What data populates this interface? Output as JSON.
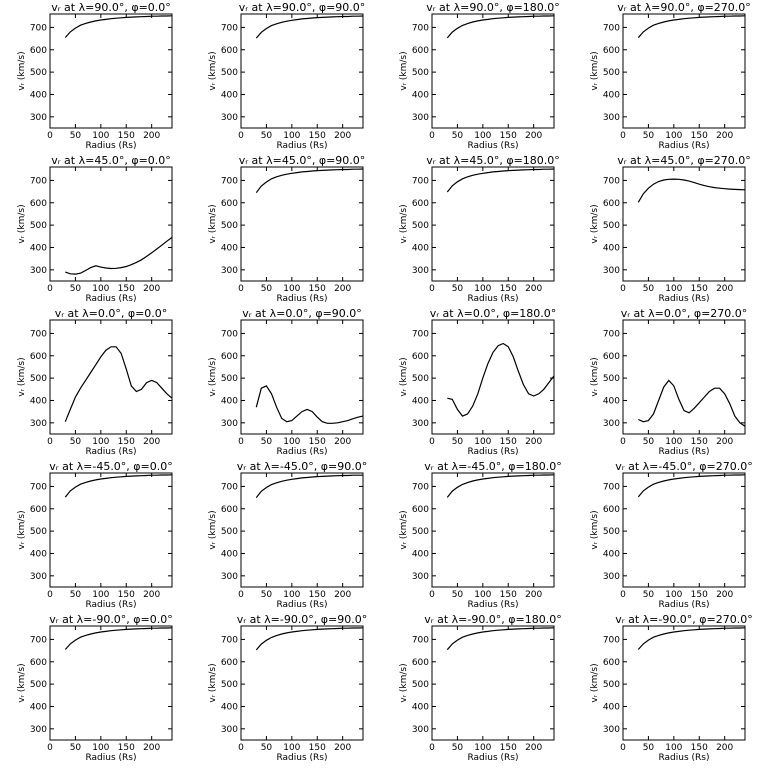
{
  "axes_common": {
    "xlabel": "Radius (Rs)",
    "ylabel": "v$_r$ (km/s)",
    "ylabel_display": "vᵣ (km/s)",
    "xlim": [
      0,
      240
    ],
    "ylim": [
      250,
      760
    ],
    "xticks": [
      0,
      50,
      100,
      150,
      200
    ],
    "yticks": [
      300,
      400,
      500,
      600,
      700
    ]
  },
  "chart_data": [
    {
      "type": "line",
      "title": "vᵣ at λ=90.0°, φ=0.0°",
      "x": [
        30,
        40,
        50,
        60,
        70,
        80,
        90,
        100,
        110,
        120,
        130,
        140,
        150,
        160,
        170,
        180,
        190,
        200,
        210,
        220,
        230,
        240
      ],
      "y": [
        655,
        680,
        697,
        710,
        718,
        724,
        729,
        733,
        736,
        739,
        741,
        743,
        745,
        746,
        747,
        748,
        749,
        750,
        750,
        751,
        751,
        752
      ]
    },
    {
      "type": "line",
      "title": "vᵣ at λ=90.0°, φ=90.0°",
      "x": [
        30,
        40,
        50,
        60,
        70,
        80,
        90,
        100,
        110,
        120,
        130,
        140,
        150,
        160,
        170,
        180,
        190,
        200,
        210,
        220,
        230,
        240
      ],
      "y": [
        652,
        678,
        695,
        708,
        716,
        723,
        728,
        732,
        735,
        738,
        740,
        742,
        744,
        745,
        746,
        747,
        748,
        749,
        749,
        750,
        750,
        751
      ]
    },
    {
      "type": "line",
      "title": "vᵣ at λ=90.0°, φ=180.0°",
      "x": [
        30,
        40,
        50,
        60,
        70,
        80,
        90,
        100,
        110,
        120,
        130,
        140,
        150,
        160,
        170,
        180,
        190,
        200,
        210,
        220,
        230,
        240
      ],
      "y": [
        653,
        679,
        696,
        709,
        717,
        724,
        729,
        733,
        736,
        739,
        741,
        743,
        745,
        746,
        747,
        748,
        749,
        750,
        750,
        751,
        751,
        752
      ]
    },
    {
      "type": "line",
      "title": "vᵣ at λ=90.0°, φ=270.0°",
      "x": [
        30,
        40,
        50,
        60,
        70,
        80,
        90,
        100,
        110,
        120,
        130,
        140,
        150,
        160,
        170,
        180,
        190,
        200,
        210,
        220,
        230,
        240
      ],
      "y": [
        654,
        680,
        697,
        710,
        718,
        724,
        729,
        733,
        736,
        739,
        741,
        743,
        745,
        746,
        747,
        748,
        749,
        750,
        750,
        751,
        751,
        752
      ]
    },
    {
      "type": "line",
      "title": "vᵣ at λ=45.0°, φ=0.0°",
      "x": [
        30,
        40,
        50,
        60,
        70,
        80,
        90,
        100,
        110,
        120,
        130,
        140,
        150,
        160,
        170,
        180,
        190,
        200,
        210,
        220,
        230,
        240
      ],
      "y": [
        290,
        282,
        281,
        285,
        297,
        310,
        318,
        312,
        308,
        306,
        307,
        310,
        315,
        323,
        333,
        345,
        360,
        376,
        393,
        410,
        428,
        445
      ]
    },
    {
      "type": "line",
      "title": "vᵣ at λ=45.0°, φ=90.0°",
      "x": [
        30,
        40,
        50,
        60,
        70,
        80,
        90,
        100,
        110,
        120,
        130,
        140,
        150,
        160,
        170,
        180,
        190,
        200,
        210,
        220,
        230,
        240
      ],
      "y": [
        645,
        675,
        693,
        707,
        716,
        723,
        728,
        732,
        735,
        738,
        740,
        742,
        744,
        745,
        746,
        747,
        748,
        749,
        749,
        750,
        750,
        751
      ]
    },
    {
      "type": "line",
      "title": "vᵣ at λ=45.0°, φ=180.0°",
      "x": [
        30,
        40,
        50,
        60,
        70,
        80,
        90,
        100,
        110,
        120,
        130,
        140,
        150,
        160,
        170,
        180,
        190,
        200,
        210,
        220,
        230,
        240
      ],
      "y": [
        648,
        676,
        694,
        707,
        716,
        723,
        728,
        732,
        735,
        738,
        740,
        742,
        744,
        745,
        746,
        747,
        748,
        749,
        749,
        750,
        750,
        751
      ]
    },
    {
      "type": "line",
      "title": "vᵣ at λ=45.0°, φ=270.0°",
      "x": [
        30,
        40,
        50,
        60,
        70,
        80,
        90,
        100,
        110,
        120,
        130,
        140,
        150,
        160,
        170,
        180,
        190,
        200,
        210,
        220,
        230,
        240
      ],
      "y": [
        602,
        640,
        665,
        683,
        695,
        702,
        705,
        706,
        705,
        702,
        697,
        690,
        683,
        677,
        672,
        668,
        665,
        663,
        661,
        660,
        659,
        658
      ]
    },
    {
      "type": "line",
      "title": "vᵣ at λ=0.0°, φ=0.0°",
      "x": [
        30,
        40,
        50,
        60,
        70,
        80,
        90,
        100,
        110,
        120,
        130,
        140,
        150,
        160,
        170,
        180,
        190,
        200,
        210,
        220,
        230,
        240
      ],
      "y": [
        305,
        360,
        415,
        455,
        490,
        525,
        560,
        595,
        625,
        640,
        640,
        610,
        540,
        465,
        440,
        450,
        480,
        490,
        480,
        455,
        430,
        410
      ]
    },
    {
      "type": "line",
      "title": "vᵣ at λ=0.0°, φ=90.0°",
      "x": [
        30,
        40,
        50,
        60,
        70,
        80,
        90,
        100,
        110,
        120,
        130,
        140,
        150,
        160,
        170,
        180,
        190,
        200,
        210,
        220,
        230,
        240
      ],
      "y": [
        370,
        455,
        465,
        430,
        370,
        320,
        305,
        310,
        330,
        350,
        360,
        350,
        325,
        305,
        298,
        298,
        300,
        305,
        310,
        318,
        325,
        330
      ]
    },
    {
      "type": "line",
      "title": "vᵣ at λ=0.0°, φ=180.0°",
      "x": [
        30,
        40,
        50,
        60,
        70,
        80,
        90,
        100,
        110,
        120,
        130,
        140,
        150,
        160,
        170,
        180,
        190,
        200,
        210,
        220,
        230,
        240
      ],
      "y": [
        410,
        405,
        360,
        330,
        340,
        375,
        430,
        500,
        565,
        615,
        645,
        655,
        640,
        595,
        530,
        470,
        430,
        420,
        430,
        450,
        480,
        510
      ]
    },
    {
      "type": "line",
      "title": "vᵣ at λ=0.0°, φ=270.0°",
      "x": [
        30,
        40,
        50,
        60,
        70,
        80,
        90,
        100,
        110,
        120,
        130,
        140,
        150,
        160,
        170,
        180,
        190,
        200,
        210,
        220,
        230,
        240
      ],
      "y": [
        315,
        305,
        310,
        340,
        400,
        460,
        490,
        465,
        405,
        355,
        345,
        365,
        390,
        415,
        440,
        455,
        455,
        430,
        385,
        330,
        300,
        285
      ]
    },
    {
      "type": "line",
      "title": "vᵣ at λ=-45.0°, φ=0.0°",
      "x": [
        30,
        40,
        50,
        60,
        70,
        80,
        90,
        100,
        110,
        120,
        130,
        140,
        150,
        160,
        170,
        180,
        190,
        200,
        210,
        220,
        230,
        240
      ],
      "y": [
        652,
        680,
        697,
        710,
        718,
        724,
        729,
        733,
        736,
        739,
        741,
        743,
        745,
        746,
        747,
        748,
        749,
        750,
        750,
        751,
        751,
        752
      ]
    },
    {
      "type": "line",
      "title": "vᵣ at λ=-45.0°, φ=90.0°",
      "x": [
        30,
        40,
        50,
        60,
        70,
        80,
        90,
        100,
        110,
        120,
        130,
        140,
        150,
        160,
        170,
        180,
        190,
        200,
        210,
        220,
        230,
        240
      ],
      "y": [
        650,
        678,
        695,
        708,
        716,
        723,
        728,
        732,
        735,
        738,
        740,
        742,
        744,
        745,
        746,
        747,
        748,
        749,
        749,
        750,
        750,
        750
      ]
    },
    {
      "type": "line",
      "title": "vᵣ at λ=-45.0°, φ=180.0°",
      "x": [
        30,
        40,
        50,
        60,
        70,
        80,
        90,
        100,
        110,
        120,
        130,
        140,
        150,
        160,
        170,
        180,
        190,
        200,
        210,
        220,
        230,
        240
      ],
      "y": [
        651,
        679,
        696,
        709,
        717,
        724,
        729,
        733,
        736,
        739,
        741,
        743,
        745,
        746,
        747,
        748,
        749,
        750,
        750,
        751,
        751,
        752
      ]
    },
    {
      "type": "line",
      "title": "vᵣ at λ=-45.0°, φ=270.0°",
      "x": [
        30,
        40,
        50,
        60,
        70,
        80,
        90,
        100,
        110,
        120,
        130,
        140,
        150,
        160,
        170,
        180,
        190,
        200,
        210,
        220,
        230,
        240
      ],
      "y": [
        653,
        680,
        697,
        710,
        718,
        724,
        729,
        733,
        736,
        739,
        741,
        743,
        745,
        746,
        747,
        748,
        749,
        750,
        750,
        751,
        751,
        752
      ]
    },
    {
      "type": "line",
      "title": "vᵣ at λ=-90.0°, φ=0.0°",
      "x": [
        30,
        40,
        50,
        60,
        70,
        80,
        90,
        100,
        110,
        120,
        130,
        140,
        150,
        160,
        170,
        180,
        190,
        200,
        210,
        220,
        230,
        240
      ],
      "y": [
        655,
        680,
        697,
        710,
        718,
        724,
        729,
        733,
        736,
        739,
        741,
        743,
        745,
        746,
        747,
        748,
        749,
        750,
        750,
        751,
        751,
        752
      ]
    },
    {
      "type": "line",
      "title": "vᵣ at λ=-90.0°, φ=90.0°",
      "x": [
        30,
        40,
        50,
        60,
        70,
        80,
        90,
        100,
        110,
        120,
        130,
        140,
        150,
        160,
        170,
        180,
        190,
        200,
        210,
        220,
        230,
        240
      ],
      "y": [
        653,
        679,
        696,
        709,
        717,
        724,
        729,
        733,
        736,
        739,
        741,
        743,
        745,
        746,
        747,
        748,
        749,
        750,
        750,
        751,
        751,
        752
      ]
    },
    {
      "type": "line",
      "title": "vᵣ at λ=-90.0°, φ=180.0°",
      "x": [
        30,
        40,
        50,
        60,
        70,
        80,
        90,
        100,
        110,
        120,
        130,
        140,
        150,
        160,
        170,
        180,
        190,
        200,
        210,
        220,
        230,
        240
      ],
      "y": [
        654,
        680,
        697,
        710,
        718,
        724,
        729,
        733,
        736,
        739,
        741,
        743,
        745,
        746,
        747,
        748,
        749,
        750,
        750,
        751,
        751,
        752
      ]
    },
    {
      "type": "line",
      "title": "vᵣ at λ=-90.0°, φ=270.0°",
      "x": [
        30,
        40,
        50,
        60,
        70,
        80,
        90,
        100,
        110,
        120,
        130,
        140,
        150,
        160,
        170,
        180,
        190,
        200,
        210,
        220,
        230,
        240
      ],
      "y": [
        655,
        680,
        697,
        710,
        718,
        724,
        729,
        733,
        736,
        739,
        741,
        743,
        745,
        746,
        747,
        748,
        749,
        750,
        750,
        751,
        751,
        752
      ]
    }
  ]
}
